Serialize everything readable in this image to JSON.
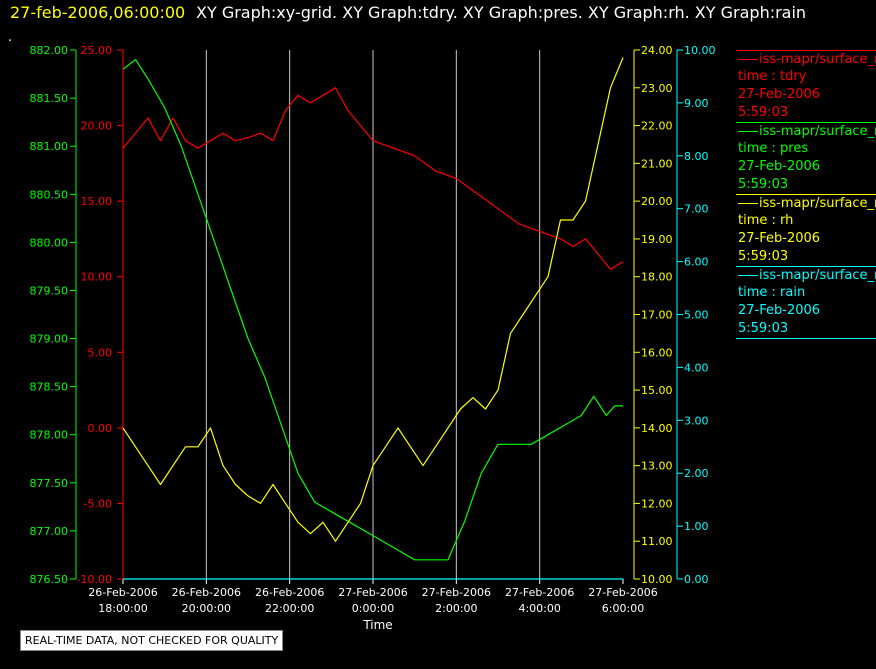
{
  "header": {
    "time": "27-feb-2006,06:00:00",
    "graphs": "XY Graph:xy-grid.  XY Graph:tdry.  XY Graph:pres.  XY Graph:rh.  XY Graph:rain"
  },
  "dot": ".",
  "quality_note": "REAL-TIME DATA, NOT CHECKED FOR QUALITY",
  "colors": {
    "tdry": "#ff0000",
    "pres": "#00ff00",
    "rh": "#ffff00",
    "rain": "#00ffff",
    "grid": "#c8c8c8",
    "background": "#000000"
  },
  "legend": [
    {
      "name": "iss-mapr/surface_m",
      "line1": "time : tdry",
      "line2": "27-Feb-2006",
      "line3": "5:59:03",
      "color": "#ff0000"
    },
    {
      "name": "iss-mapr/surface_m",
      "line1": "time : pres",
      "line2": "27-Feb-2006",
      "line3": "5:59:03",
      "color": "#00ff00"
    },
    {
      "name": "iss-mapr/surface_m",
      "line1": "time : rh",
      "line2": "27-Feb-2006",
      "line3": "5:59:03",
      "color": "#ffff00"
    },
    {
      "name": "iss-mapr/surface_m",
      "line1": "time : rain",
      "line2": "27-Feb-2006",
      "line3": "5:59:03",
      "color": "#00ffff"
    }
  ],
  "chart_data": {
    "type": "line",
    "xlabel": "Time",
    "x_ticks": [
      [
        "26-Feb-2006",
        "18:00:00"
      ],
      [
        "26-Feb-2006",
        "20:00:00"
      ],
      [
        "26-Feb-2006",
        "22:00:00"
      ],
      [
        "27-Feb-2006",
        "0:00:00"
      ],
      [
        "27-Feb-2006",
        "2:00:00"
      ],
      [
        "27-Feb-2006",
        "4:00:00"
      ],
      [
        "27-Feb-2006",
        "6:00:00"
      ]
    ],
    "x_range_hours": [
      18,
      30
    ],
    "grid": "vertical",
    "legend_position": "right",
    "axes": {
      "tdry": {
        "side": "left-inner",
        "range": [
          -10,
          25
        ],
        "ticks": [
          "-10.00",
          "-5.00",
          "0.00",
          "5.00",
          "10.00",
          "15.00",
          "20.00",
          "25.00"
        ],
        "color": "#ff0000"
      },
      "pres": {
        "side": "left-outer",
        "range": [
          876.5,
          882
        ],
        "ticks": [
          "876.50",
          "877.00",
          "877.50",
          "878.00",
          "878.50",
          "879.00",
          "879.50",
          "880.00",
          "880.50",
          "881.00",
          "881.50",
          "882.00"
        ],
        "color": "#00ff00"
      },
      "rh": {
        "side": "right-inner",
        "range": [
          10,
          24
        ],
        "ticks": [
          "10.00",
          "11.00",
          "12.00",
          "13.00",
          "14.00",
          "15.00",
          "16.00",
          "17.00",
          "18.00",
          "19.00",
          "20.00",
          "21.00",
          "22.00",
          "23.00",
          "24.00"
        ],
        "color": "#ffff00"
      },
      "rain": {
        "side": "right-outer",
        "range": [
          0,
          10
        ],
        "ticks": [
          "0.00",
          "1.00",
          "2.00",
          "3.00",
          "4.00",
          "5.00",
          "6.00",
          "7.00",
          "8.00",
          "9.00",
          "10.00"
        ],
        "color": "#00ffff"
      }
    },
    "series": [
      {
        "name": "tdry",
        "axis": "tdry",
        "x": [
          18.0,
          18.3,
          18.6,
          18.9,
          19.2,
          19.5,
          19.8,
          20.1,
          20.4,
          20.7,
          21.0,
          21.3,
          21.6,
          21.9,
          22.2,
          22.5,
          22.8,
          23.1,
          23.4,
          23.7,
          24.0,
          24.5,
          25.0,
          25.5,
          26.0,
          26.5,
          27.0,
          27.5,
          28.0,
          28.5,
          28.8,
          29.1,
          29.4,
          29.7,
          30.0
        ],
        "values": [
          18.5,
          19.5,
          20.5,
          19.0,
          20.5,
          19.0,
          18.5,
          19.0,
          19.5,
          19.0,
          19.2,
          19.5,
          19.0,
          21.0,
          22.0,
          21.5,
          22.0,
          22.5,
          21.0,
          20.0,
          19.0,
          18.5,
          18.0,
          17.0,
          16.5,
          15.5,
          14.5,
          13.5,
          13.0,
          12.5,
          12.0,
          12.5,
          11.5,
          10.5,
          11.0
        ]
      },
      {
        "name": "pres",
        "axis": "pres",
        "x": [
          18.0,
          18.3,
          18.6,
          19.0,
          19.4,
          19.8,
          20.2,
          20.6,
          21.0,
          21.4,
          21.8,
          22.2,
          22.6,
          23.0,
          23.4,
          23.8,
          24.2,
          24.6,
          25.0,
          25.4,
          25.8,
          26.2,
          26.6,
          27.0,
          27.4,
          27.8,
          28.2,
          28.6,
          29.0,
          29.3,
          29.6,
          29.8,
          30.0
        ],
        "values": [
          881.8,
          881.9,
          881.7,
          881.4,
          881.0,
          880.5,
          880.0,
          879.5,
          879.0,
          878.6,
          878.1,
          877.6,
          877.3,
          877.2,
          877.1,
          877.0,
          876.9,
          876.8,
          876.7,
          876.7,
          876.7,
          877.1,
          877.6,
          877.9,
          877.9,
          877.9,
          878.0,
          878.1,
          878.2,
          878.4,
          878.2,
          878.3,
          878.3
        ]
      },
      {
        "name": "rh",
        "axis": "rh",
        "x": [
          18.0,
          18.3,
          18.6,
          18.9,
          19.2,
          19.5,
          19.8,
          20.1,
          20.4,
          20.7,
          21.0,
          21.3,
          21.6,
          21.9,
          22.2,
          22.5,
          22.8,
          23.1,
          23.4,
          23.7,
          24.0,
          24.3,
          24.6,
          24.9,
          25.2,
          25.5,
          25.8,
          26.1,
          26.4,
          26.7,
          27.0,
          27.3,
          27.6,
          27.9,
          28.2,
          28.5,
          28.8,
          29.1,
          29.4,
          29.7,
          30.0
        ],
        "values": [
          14.0,
          13.5,
          13.0,
          12.5,
          13.0,
          13.5,
          13.5,
          14.0,
          13.0,
          12.5,
          12.2,
          12.0,
          12.5,
          12.0,
          11.5,
          11.2,
          11.5,
          11.0,
          11.5,
          12.0,
          13.0,
          13.5,
          14.0,
          13.5,
          13.0,
          13.5,
          14.0,
          14.5,
          14.8,
          14.5,
          15.0,
          16.5,
          17.0,
          17.5,
          18.0,
          19.5,
          19.5,
          20.0,
          21.5,
          23.0,
          23.8
        ]
      },
      {
        "name": "rain",
        "axis": "rain",
        "x": [
          18,
          30
        ],
        "values": [
          0,
          0
        ]
      }
    ]
  }
}
